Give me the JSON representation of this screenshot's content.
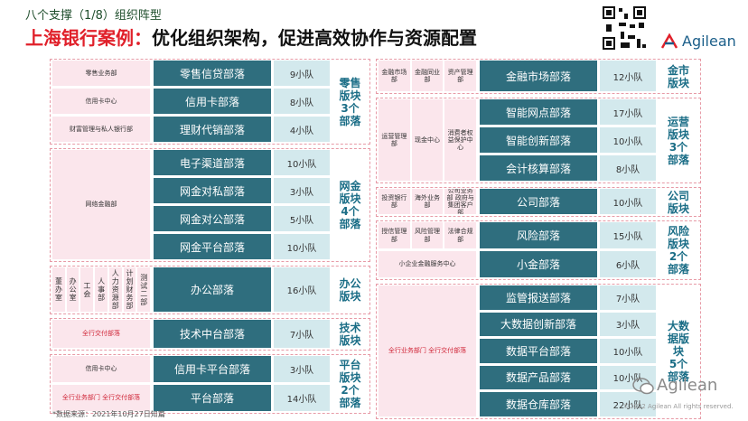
{
  "header": {
    "kicker": "八个支撑（1/8）组织阵型",
    "title_red": "上海银行案例：",
    "title_black": "优化组织架构，促进高效协作与资源配置"
  },
  "logo": "Agilean",
  "left_blocks": [
    {
      "dept_rows": [
        [
          "零售业务部"
        ],
        [
          "信用卡中心"
        ],
        [
          "财富管理与私人银行部"
        ]
      ],
      "tribes": [
        {
          "name": "零售信贷部落",
          "squads": "9小队"
        },
        {
          "name": "信用卡部落",
          "squads": "8小队"
        },
        {
          "name": "理财代销部落",
          "squads": "4小队"
        }
      ],
      "label_lines": [
        "零售",
        "版块",
        "3个",
        "部落"
      ]
    },
    {
      "dept_rows": [
        [
          "网络金融部"
        ]
      ],
      "tribes": [
        {
          "name": "电子渠道部落",
          "squads": "10小队"
        },
        {
          "name": "网金对私部落",
          "squads": "3小队"
        },
        {
          "name": "网金对公部落",
          "squads": "5小队"
        },
        {
          "name": "网金平台部落",
          "squads": "10小队"
        }
      ],
      "label_lines": [
        "网金",
        "版块",
        "4个",
        "部落"
      ]
    },
    {
      "dept_rows": [
        [
          "董办室",
          "办公室",
          "工会",
          "人事部",
          "人力资源部",
          "计划财务部",
          "测试二部"
        ]
      ],
      "tribes": [
        {
          "name": "办公部落",
          "squads": "16小队"
        }
      ],
      "label_lines": [
        "办公",
        "版块"
      ]
    },
    {
      "dept_rows": [
        [
          "全行交付部落"
        ]
      ],
      "tribes": [
        {
          "name": "技术中台部落",
          "squads": "7小队"
        }
      ],
      "label_lines": [
        "技术",
        "版块"
      ]
    },
    {
      "dept_rows": [
        [
          "信用卡中心"
        ],
        [
          "全行业务部门 全行交付部落"
        ]
      ],
      "tribes": [
        {
          "name": "信用卡平台部落",
          "squads": "3小队"
        },
        {
          "name": "平台部落",
          "squads": "14小队"
        }
      ],
      "label_lines": [
        "平台",
        "版块",
        "2个",
        "部落"
      ]
    }
  ],
  "right_blocks": [
    {
      "dept_rows": [
        [
          "金融市场部",
          "金融同业部",
          "资产管理部"
        ]
      ],
      "tribes": [
        {
          "name": "金融市场部落",
          "squads": "12小队"
        }
      ],
      "label_lines": [
        "金市",
        "版块"
      ]
    },
    {
      "dept_rows": [
        [
          "运营管理部",
          "现金中心",
          "消费者权益保护中心"
        ]
      ],
      "tribes": [
        {
          "name": "智能网点部落",
          "squads": "17小队"
        },
        {
          "name": "智能创新部落",
          "squads": "10小队"
        },
        {
          "name": "会计核算部落",
          "squads": "8小队"
        }
      ],
      "label_lines": [
        "运营",
        "版块",
        "3个",
        "部落"
      ]
    },
    {
      "dept_rows": [
        [
          "投资银行部",
          "海外业务部",
          "公司业务部 政府与集团客户部"
        ]
      ],
      "tribes": [
        {
          "name": "公司部落",
          "squads": "10小队"
        }
      ],
      "label_lines": [
        "公司",
        "版块"
      ]
    },
    {
      "dept_rows": [
        [
          "授信管理部",
          "风险管理部",
          "法律合规部"
        ],
        [
          "小企业金融服务中心"
        ]
      ],
      "tribes": [
        {
          "name": "风险部落",
          "squads": "15小队"
        },
        {
          "name": "小金部落",
          "squads": "6小队"
        }
      ],
      "label_lines": [
        "风险",
        "版块",
        "2个",
        "部落"
      ]
    },
    {
      "dept_rows": [
        [
          "全行业务部门 全行交付部落"
        ]
      ],
      "tribes": [
        {
          "name": "监管报送部落",
          "squads": "7小队"
        },
        {
          "name": "大数据创新部落",
          "squads": "3小队"
        },
        {
          "name": "数据平台部落",
          "squads": "10小队"
        },
        {
          "name": "数据产品部落",
          "squads": "10小队"
        },
        {
          "name": "数据仓库部落",
          "squads": "22小队"
        }
      ],
      "label_lines": [
        "大数",
        "据版",
        "块",
        "5个",
        "部落"
      ]
    }
  ],
  "footer": {
    "source": "*数据来源：2021年10月27日知篇",
    "watermark": "Agilean",
    "copyright": "©2022 Agilean All rights reserved."
  }
}
